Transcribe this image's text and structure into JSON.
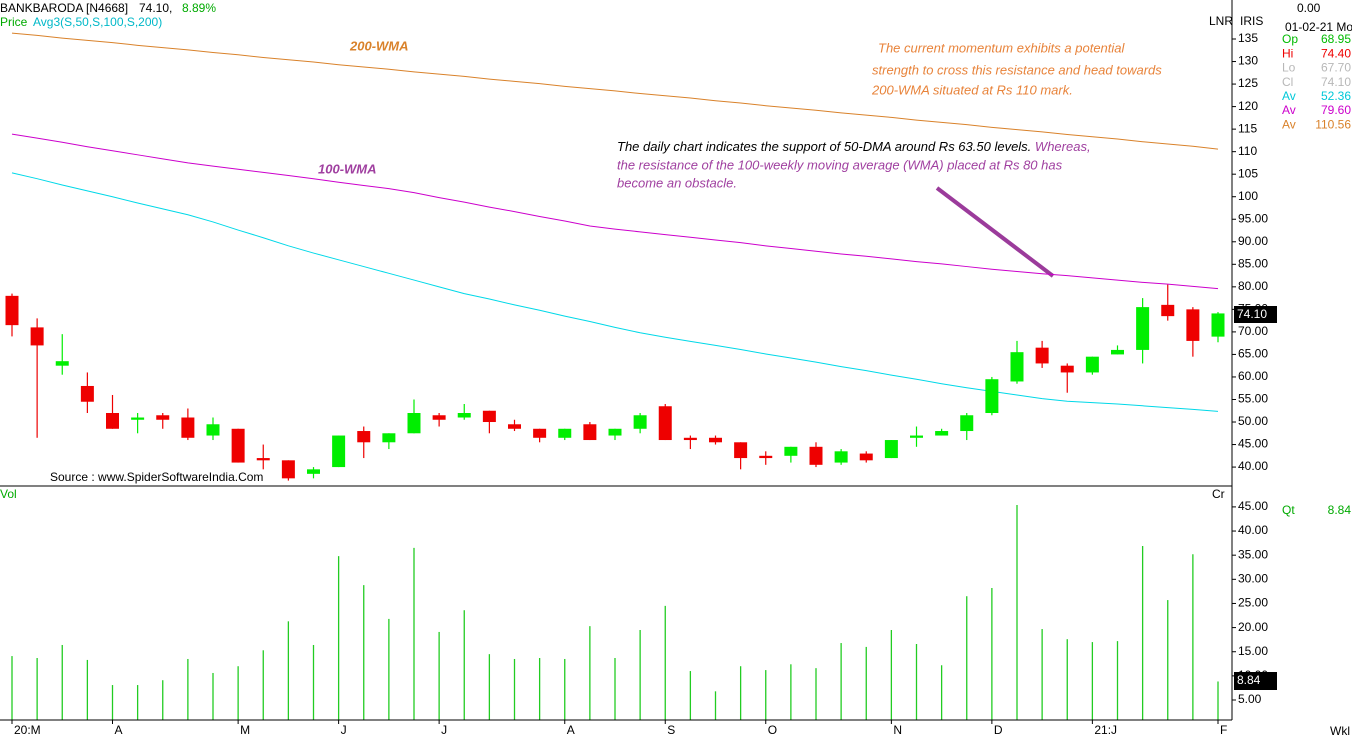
{
  "header": {
    "symbol": "BANKBARODA [N4668]",
    "last": "74.10,",
    "change": "8.89%",
    "study_line": "Price",
    "study": "Avg3(S,50,S,100,S,200)",
    "scale_mode": "LNR",
    "scale_name": "IRIS",
    "top_value": "0.00",
    "date": "01-02-21 Mo",
    "source": "Source : www.SpiderSoftwareIndia.Com",
    "period": "Wkl"
  },
  "info": [
    {
      "label": "Op",
      "value": "68.95",
      "color": "#00bb00"
    },
    {
      "label": "Hi",
      "value": "74.40",
      "color": "#ee0000"
    },
    {
      "label": "Lo",
      "value": "67.70",
      "color": "#b8b8b8"
    },
    {
      "label": "Cl",
      "value": "74.10",
      "color": "#b8b8b8"
    },
    {
      "label": "Av",
      "value": "52.36",
      "color": "#00c8d8"
    },
    {
      "label": "Av",
      "value": "79.60",
      "color": "#cc00cc"
    },
    {
      "label": "Av",
      "value": "110.56",
      "color": "#d9822b"
    }
  ],
  "annotations": {
    "momentum": [
      "The current momentum exhibits a potential",
      "strength to cross this resistance and head towards",
      "200-WMA situated at Rs 110 mark."
    ],
    "daily_black": "The daily chart indicates the support of 50-DMA around Rs 63.50 levels.",
    "daily_purple": [
      "Whereas,",
      "the resistance of the 100-weekly moving average (WMA) placed at Rs 80 has",
      "become an obstacle."
    ]
  },
  "chart_data": [
    {
      "type": "candlestick",
      "price_tag": "74.10",
      "up_color": "#00ee00",
      "down_color": "#ee0000",
      "categories": [
        "20:M",
        null,
        null,
        null,
        "A",
        null,
        null,
        null,
        null,
        "M",
        null,
        null,
        null,
        "J",
        null,
        null,
        null,
        "J",
        null,
        null,
        null,
        null,
        "A",
        null,
        null,
        null,
        "S",
        null,
        null,
        null,
        "O",
        null,
        null,
        null,
        null,
        "N",
        null,
        null,
        null,
        "D",
        null,
        null,
        null,
        "21:J",
        null,
        null,
        null,
        null,
        "F"
      ],
      "open": [
        78,
        71,
        62.5,
        58,
        52,
        50.5,
        51.5,
        51,
        47,
        48.5,
        42,
        41.5,
        38.5,
        40,
        48,
        45.5,
        47.5,
        51.5,
        51,
        52.5,
        49.5,
        48.5,
        46.5,
        49.5,
        47,
        48.5,
        53.5,
        46.5,
        46.5,
        45.5,
        42.5,
        42.5,
        44.5,
        41,
        43,
        42,
        46.5,
        47,
        48,
        52,
        59,
        66.5,
        62.5,
        61,
        65,
        66,
        76,
        75,
        68.95
      ],
      "high": [
        78.5,
        73,
        69.5,
        61,
        56,
        52,
        52,
        53,
        51,
        48.5,
        45,
        41.5,
        40,
        47,
        49,
        47.5,
        55,
        52,
        54,
        52.5,
        50.5,
        48.5,
        48.5,
        50,
        48.5,
        52,
        54,
        47,
        47,
        45.5,
        43.5,
        44.5,
        45.5,
        44,
        43.5,
        46,
        49,
        48.5,
        52,
        60,
        68,
        68,
        63,
        64.5,
        67,
        77.5,
        80.5,
        75.5,
        74.4
      ],
      "low": [
        69,
        46.5,
        60.5,
        52,
        48.5,
        47.5,
        48.5,
        46,
        46,
        41,
        39.5,
        37,
        37.5,
        40,
        42,
        44,
        47.5,
        49,
        50.5,
        47.5,
        48,
        45.5,
        46,
        46,
        46,
        47.5,
        46,
        44,
        45,
        39.5,
        40.5,
        41,
        40,
        40.5,
        41,
        42,
        44.5,
        47,
        46,
        51.5,
        58.5,
        62,
        56.5,
        60.5,
        65,
        63,
        72.5,
        64.5,
        67.7
      ],
      "close": [
        71.5,
        67,
        63.5,
        54.5,
        48.5,
        51,
        50.5,
        46.5,
        49.5,
        41,
        41.5,
        37.5,
        39.5,
        47,
        45.5,
        47.5,
        52,
        50.5,
        52,
        50,
        48.5,
        46.5,
        48.5,
        46,
        48.5,
        51.5,
        46,
        46,
        45.5,
        42,
        42,
        44.5,
        40.5,
        43.5,
        41.5,
        46,
        47,
        48,
        51.5,
        59.5,
        65.5,
        63,
        61,
        64.5,
        66,
        75.5,
        73.5,
        68,
        74.1
      ],
      "overlays": [
        {
          "name": "200-WMA",
          "color": "#d9822b",
          "values": [
            136.3,
            135.8,
            135.2,
            134.7,
            134.2,
            133.6,
            133.1,
            132.6,
            132.0,
            131.5,
            130.9,
            130.4,
            129.9,
            129.3,
            128.8,
            128.3,
            127.7,
            127.2,
            126.7,
            126.1,
            125.6,
            125.1,
            124.5,
            124.0,
            123.5,
            122.9,
            122.4,
            121.9,
            121.3,
            120.8,
            120.2,
            119.7,
            119.2,
            118.6,
            118.1,
            117.6,
            117.0,
            116.5,
            116.0,
            115.4,
            114.9,
            114.4,
            113.8,
            113.3,
            112.8,
            112.2,
            111.7,
            111.2,
            110.56
          ]
        },
        {
          "name": "100-WMA",
          "color": "#cc00cc",
          "values": [
            113.9,
            113.0,
            112.1,
            111.1,
            110.2,
            109.3,
            108.4,
            107.5,
            106.8,
            106.1,
            105.4,
            104.7,
            104.0,
            103.2,
            102.5,
            101.8,
            100.9,
            99.8,
            98.8,
            97.7,
            96.7,
            95.6,
            94.6,
            93.5,
            92.8,
            92.2,
            91.6,
            91.0,
            90.4,
            89.8,
            89.1,
            88.5,
            87.9,
            87.3,
            86.8,
            86.2,
            85.6,
            85.1,
            84.5,
            83.9,
            83.4,
            82.9,
            82.5,
            82.0,
            81.5,
            81.0,
            80.6,
            80.1,
            79.6
          ]
        },
        {
          "color": "#00d8e8",
          "values": [
            105.3,
            104.0,
            102.6,
            101.3,
            100.0,
            98.6,
            97.3,
            96.0,
            94.4,
            92.6,
            90.9,
            89.1,
            87.5,
            86.0,
            84.5,
            83.0,
            81.5,
            80.0,
            78.5,
            77.3,
            76.0,
            74.8,
            73.5,
            72.3,
            71.0,
            69.8,
            68.8,
            67.9,
            67.0,
            66.1,
            65.1,
            64.2,
            63.3,
            62.3,
            61.4,
            60.4,
            59.5,
            58.5,
            57.6,
            56.8,
            56.0,
            55.2,
            54.6,
            54.3,
            54.0,
            53.6,
            53.2,
            52.8,
            52.36
          ]
        }
      ],
      "ylim": [
        35.8,
        137
      ],
      "yticks": [
        {
          "value": 40,
          "label": "40.00"
        },
        {
          "value": 45,
          "label": "45.00"
        },
        {
          "value": 50,
          "label": "50.00"
        },
        {
          "value": 55,
          "label": "55.00"
        },
        {
          "value": 60,
          "label": "60.00"
        },
        {
          "value": 65,
          "label": "65.00"
        },
        {
          "value": 70,
          "label": "70.00"
        },
        {
          "value": 75,
          "label": "75.00"
        },
        {
          "value": 80,
          "label": "80.00"
        },
        {
          "value": 85,
          "label": "85.00"
        },
        {
          "value": 90,
          "label": "90.00"
        },
        {
          "value": 95,
          "label": "95.00"
        },
        100,
        105,
        110,
        115,
        120,
        125,
        130,
        135
      ],
      "grid": false
    },
    {
      "type": "bar",
      "title": "Vol",
      "scale_name": "Cr",
      "qt_label": "Qt",
      "last_label": "8.84",
      "color": "#22cc22",
      "values": [
        14.1,
        13.7,
        16.4,
        13.3,
        8.1,
        8.1,
        9.1,
        13.5,
        10.6,
        12.0,
        15.3,
        21.3,
        16.4,
        34.8,
        28.8,
        21.8,
        36.5,
        19.1,
        23.6,
        14.5,
        13.5,
        13.7,
        13.5,
        20.3,
        13.7,
        19.5,
        24.5,
        11.0,
        6.8,
        12.0,
        11.2,
        12.4,
        11.6,
        16.8,
        16.0,
        19.5,
        16.6,
        12.2,
        26.5,
        28.2,
        45.4,
        19.7,
        17.6,
        17.0,
        17.2,
        36.9,
        25.7,
        35.2,
        8.84
      ],
      "ylim": [
        0.86,
        48.5
      ],
      "yticks": [
        {
          "value": 5,
          "label": "5.00"
        },
        {
          "value": 10,
          "label": "10.00"
        },
        {
          "value": 15,
          "label": "15.00"
        },
        {
          "value": 20,
          "label": "20.00"
        },
        {
          "value": 25,
          "label": "25.00"
        },
        {
          "value": 30,
          "label": "30.00"
        },
        {
          "value": 35,
          "label": "35.00"
        },
        {
          "value": 40,
          "label": "40.00"
        },
        {
          "value": 45,
          "label": "45.00"
        }
      ],
      "grid": false
    }
  ]
}
